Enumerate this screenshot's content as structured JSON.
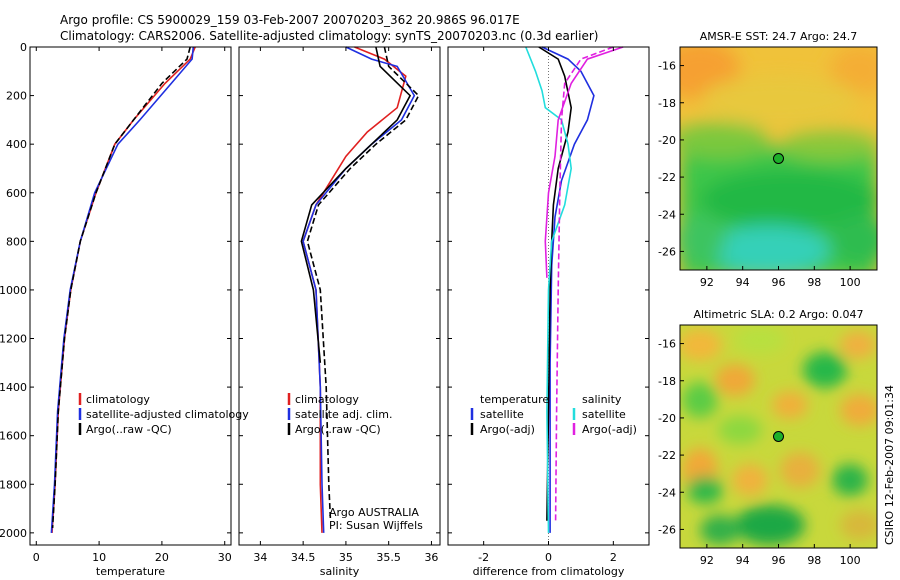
{
  "header": {
    "line1": "Argo profile: CS 5900029_159 03-Feb-2007 20070203_362 20.986S 96.017E",
    "line2": "Climatology: CARS2006. Satellite-adjusted climatology: synTS_20070203.nc (0.3d earlier)"
  },
  "credit": "CSIRO 12-Feb-2007 09:01:34",
  "colors": {
    "red": "#e02020",
    "blue": "#1f2fe0",
    "black": "#000000",
    "cyan": "#22dddd",
    "magenta": "#e020e0"
  },
  "chart_data": [
    {
      "type": "line",
      "id": "temperature",
      "xlabel": "temperature",
      "xlim": [
        -1,
        31
      ],
      "ylim": [
        2050,
        0
      ],
      "xticks": [
        0,
        10,
        20,
        30
      ],
      "yticks": [
        0,
        200,
        400,
        600,
        800,
        1000,
        1200,
        1400,
        1600,
        1800,
        2000
      ],
      "legend": [
        "climatology",
        "satellite-adjusted climatology",
        "Argo(..raw -QC)"
      ],
      "series": [
        {
          "name": "climatology",
          "color": "red",
          "dash": "none",
          "x": [
            25.3,
            24.5,
            20.5,
            15.5,
            12.5,
            9.5,
            7,
            5.5,
            4.5,
            3.5,
            3,
            2.5
          ],
          "y": [
            0,
            50,
            150,
            300,
            400,
            600,
            800,
            1000,
            1200,
            1500,
            1800,
            2000
          ]
        },
        {
          "name": "satellite-adjusted climatology",
          "color": "blue",
          "dash": "none",
          "x": [
            25,
            24.8,
            21.5,
            16.5,
            13,
            9.3,
            7,
            5.4,
            4.4,
            3.4,
            2.9,
            2.4
          ],
          "y": [
            0,
            50,
            150,
            300,
            400,
            600,
            800,
            1000,
            1200,
            1500,
            1800,
            2000
          ]
        },
        {
          "name": "Argo(..raw -QC)",
          "color": "black",
          "dash": "6,3",
          "x": [
            24.5,
            24,
            20,
            15.5,
            12.5,
            9.5,
            7,
            5.5,
            4.5,
            3.5,
            3,
            2.6
          ],
          "y": [
            0,
            50,
            150,
            300,
            400,
            600,
            800,
            1000,
            1200,
            1500,
            1800,
            1980
          ]
        }
      ]
    },
    {
      "type": "line",
      "id": "salinity",
      "xlabel": "salinity",
      "xlim": [
        33.75,
        36.1
      ],
      "ylim": [
        2050,
        0
      ],
      "xticks": [
        34,
        34.5,
        35,
        35.5,
        36
      ],
      "yticks": [
        0,
        200,
        400,
        600,
        800,
        1000,
        1200,
        1400,
        1600,
        1800,
        2000
      ],
      "legend": [
        "climatology",
        "satellite adj. clim.",
        "Argo(..raw -QC)"
      ],
      "annotation": [
        "Argo AUSTRALIA",
        "PI: Susan Wijffels"
      ],
      "series": [
        {
          "name": "climatology",
          "color": "red",
          "dash": "none",
          "x": [
            35.1,
            35.45,
            35.7,
            35.6,
            35.25,
            35.0,
            34.65,
            34.5,
            34.65,
            34.7,
            34.7,
            34.72
          ],
          "y": [
            0,
            50,
            120,
            250,
            350,
            450,
            650,
            800,
            1000,
            1400,
            1800,
            2000
          ]
        },
        {
          "name": "satellite adj. clim.",
          "color": "blue",
          "dash": "none",
          "x": [
            35.0,
            35.3,
            35.6,
            35.8,
            35.65,
            35.3,
            35.0,
            34.65,
            34.5,
            34.65,
            34.7,
            34.72,
            34.74
          ],
          "y": [
            0,
            50,
            80,
            200,
            300,
            400,
            500,
            650,
            800,
            1000,
            1400,
            1800,
            2000
          ]
        },
        {
          "name": "Argo(..raw -QC)",
          "color": "black",
          "dash": "none",
          "x": [
            35.35,
            35.4,
            35.75,
            35.6,
            35.3,
            35.0,
            34.6,
            34.48,
            34.62,
            34.7
          ],
          "y": [
            0,
            80,
            200,
            300,
            400,
            500,
            650,
            800,
            1000,
            1300
          ]
        },
        {
          "name": "Argo(..raw -QC)",
          "color": "black",
          "dash": "6,3",
          "x": [
            35.45,
            35.5,
            35.85,
            35.7,
            35.35,
            35.05,
            34.68,
            34.55,
            34.7,
            34.77,
            34.8,
            34.82
          ],
          "y": [
            0,
            80,
            200,
            300,
            400,
            500,
            650,
            800,
            1000,
            1400,
            1800,
            1950
          ]
        }
      ]
    },
    {
      "type": "line",
      "id": "difference",
      "xlabel": "difference from climatology",
      "xlim": [
        -3.1,
        3.1
      ],
      "ylim": [
        2050,
        0
      ],
      "xticks": [
        -2,
        0,
        2
      ],
      "yticks": [
        0,
        200,
        400,
        600,
        800,
        1000,
        1200,
        1400,
        1600,
        1800,
        2000
      ],
      "legend_left_title": "temperature",
      "legend_left": [
        "satellite",
        "Argo(-adj)"
      ],
      "legend_right_title": "salinity",
      "legend_right": [
        "satellite",
        "Argo(-adj)"
      ],
      "series": [
        {
          "name": "temperature satellite",
          "color": "blue",
          "dash": "none",
          "x": [
            -0.2,
            0.6,
            1.0,
            1.4,
            1.2,
            0.8,
            0.4,
            0.2,
            0.1,
            0.05,
            0.05,
            0.05
          ],
          "y": [
            0,
            50,
            100,
            200,
            300,
            400,
            550,
            700,
            900,
            1300,
            1700,
            2000
          ]
        },
        {
          "name": "temperature Argo(-adj)",
          "color": "black",
          "dash": "none",
          "x": [
            -0.3,
            0.3,
            0.5,
            0.7,
            0.6,
            0.3,
            0.15,
            0.1,
            0.05,
            0.0,
            -0.05
          ],
          "y": [
            0,
            50,
            120,
            250,
            350,
            500,
            650,
            800,
            1000,
            1500,
            1950
          ]
        },
        {
          "name": "salinity satellite",
          "color": "cyan",
          "dash": "none",
          "x": [
            -0.7,
            -0.4,
            -0.2,
            -0.1,
            0.4,
            0.6,
            0.7,
            0.5,
            0.1,
            0.0,
            -0.05,
            0.0
          ],
          "y": [
            0,
            100,
            180,
            250,
            300,
            400,
            500,
            650,
            800,
            1000,
            1500,
            2000
          ]
        },
        {
          "name": "salinity Argo(-adj)",
          "color": "magenta",
          "dash": "none",
          "x": [
            2.3,
            1.2,
            0.7,
            0.3,
            0.2,
            0.0,
            -0.1,
            -0.05
          ],
          "y": [
            0,
            50,
            150,
            300,
            450,
            600,
            800,
            950
          ]
        },
        {
          "name": "salinity Argo(-adj)",
          "color": "magenta",
          "dash": "6,3",
          "x": [
            2.0,
            1.0,
            0.5,
            0.4,
            0.35,
            0.3,
            0.25,
            0.22
          ],
          "y": [
            0,
            50,
            150,
            300,
            600,
            1000,
            1500,
            1950
          ]
        }
      ]
    },
    {
      "type": "heatmap",
      "id": "sst-map",
      "title": "AMSR-E SST: 24.7 Argo: 24.7",
      "xlim": [
        90.5,
        101.5
      ],
      "ylim": [
        -27,
        -15
      ],
      "xticks": [
        92,
        94,
        96,
        98,
        100
      ],
      "yticks": [
        -16,
        -18,
        -20,
        -22,
        -24,
        -26
      ],
      "marker": {
        "lon": 96.0,
        "lat": -21.0,
        "color": "#1db02a"
      }
    },
    {
      "type": "heatmap",
      "id": "sla-map",
      "title": "Altimetric SLA: 0.2 Argo: 0.047",
      "xlim": [
        90.5,
        101.5
      ],
      "ylim": [
        -27,
        -15
      ],
      "xticks": [
        92,
        94,
        96,
        98,
        100
      ],
      "yticks": [
        -16,
        -18,
        -20,
        -22,
        -24,
        -26
      ],
      "marker": {
        "lon": 96.0,
        "lat": -21.0,
        "color": "#1db02a"
      }
    }
  ]
}
